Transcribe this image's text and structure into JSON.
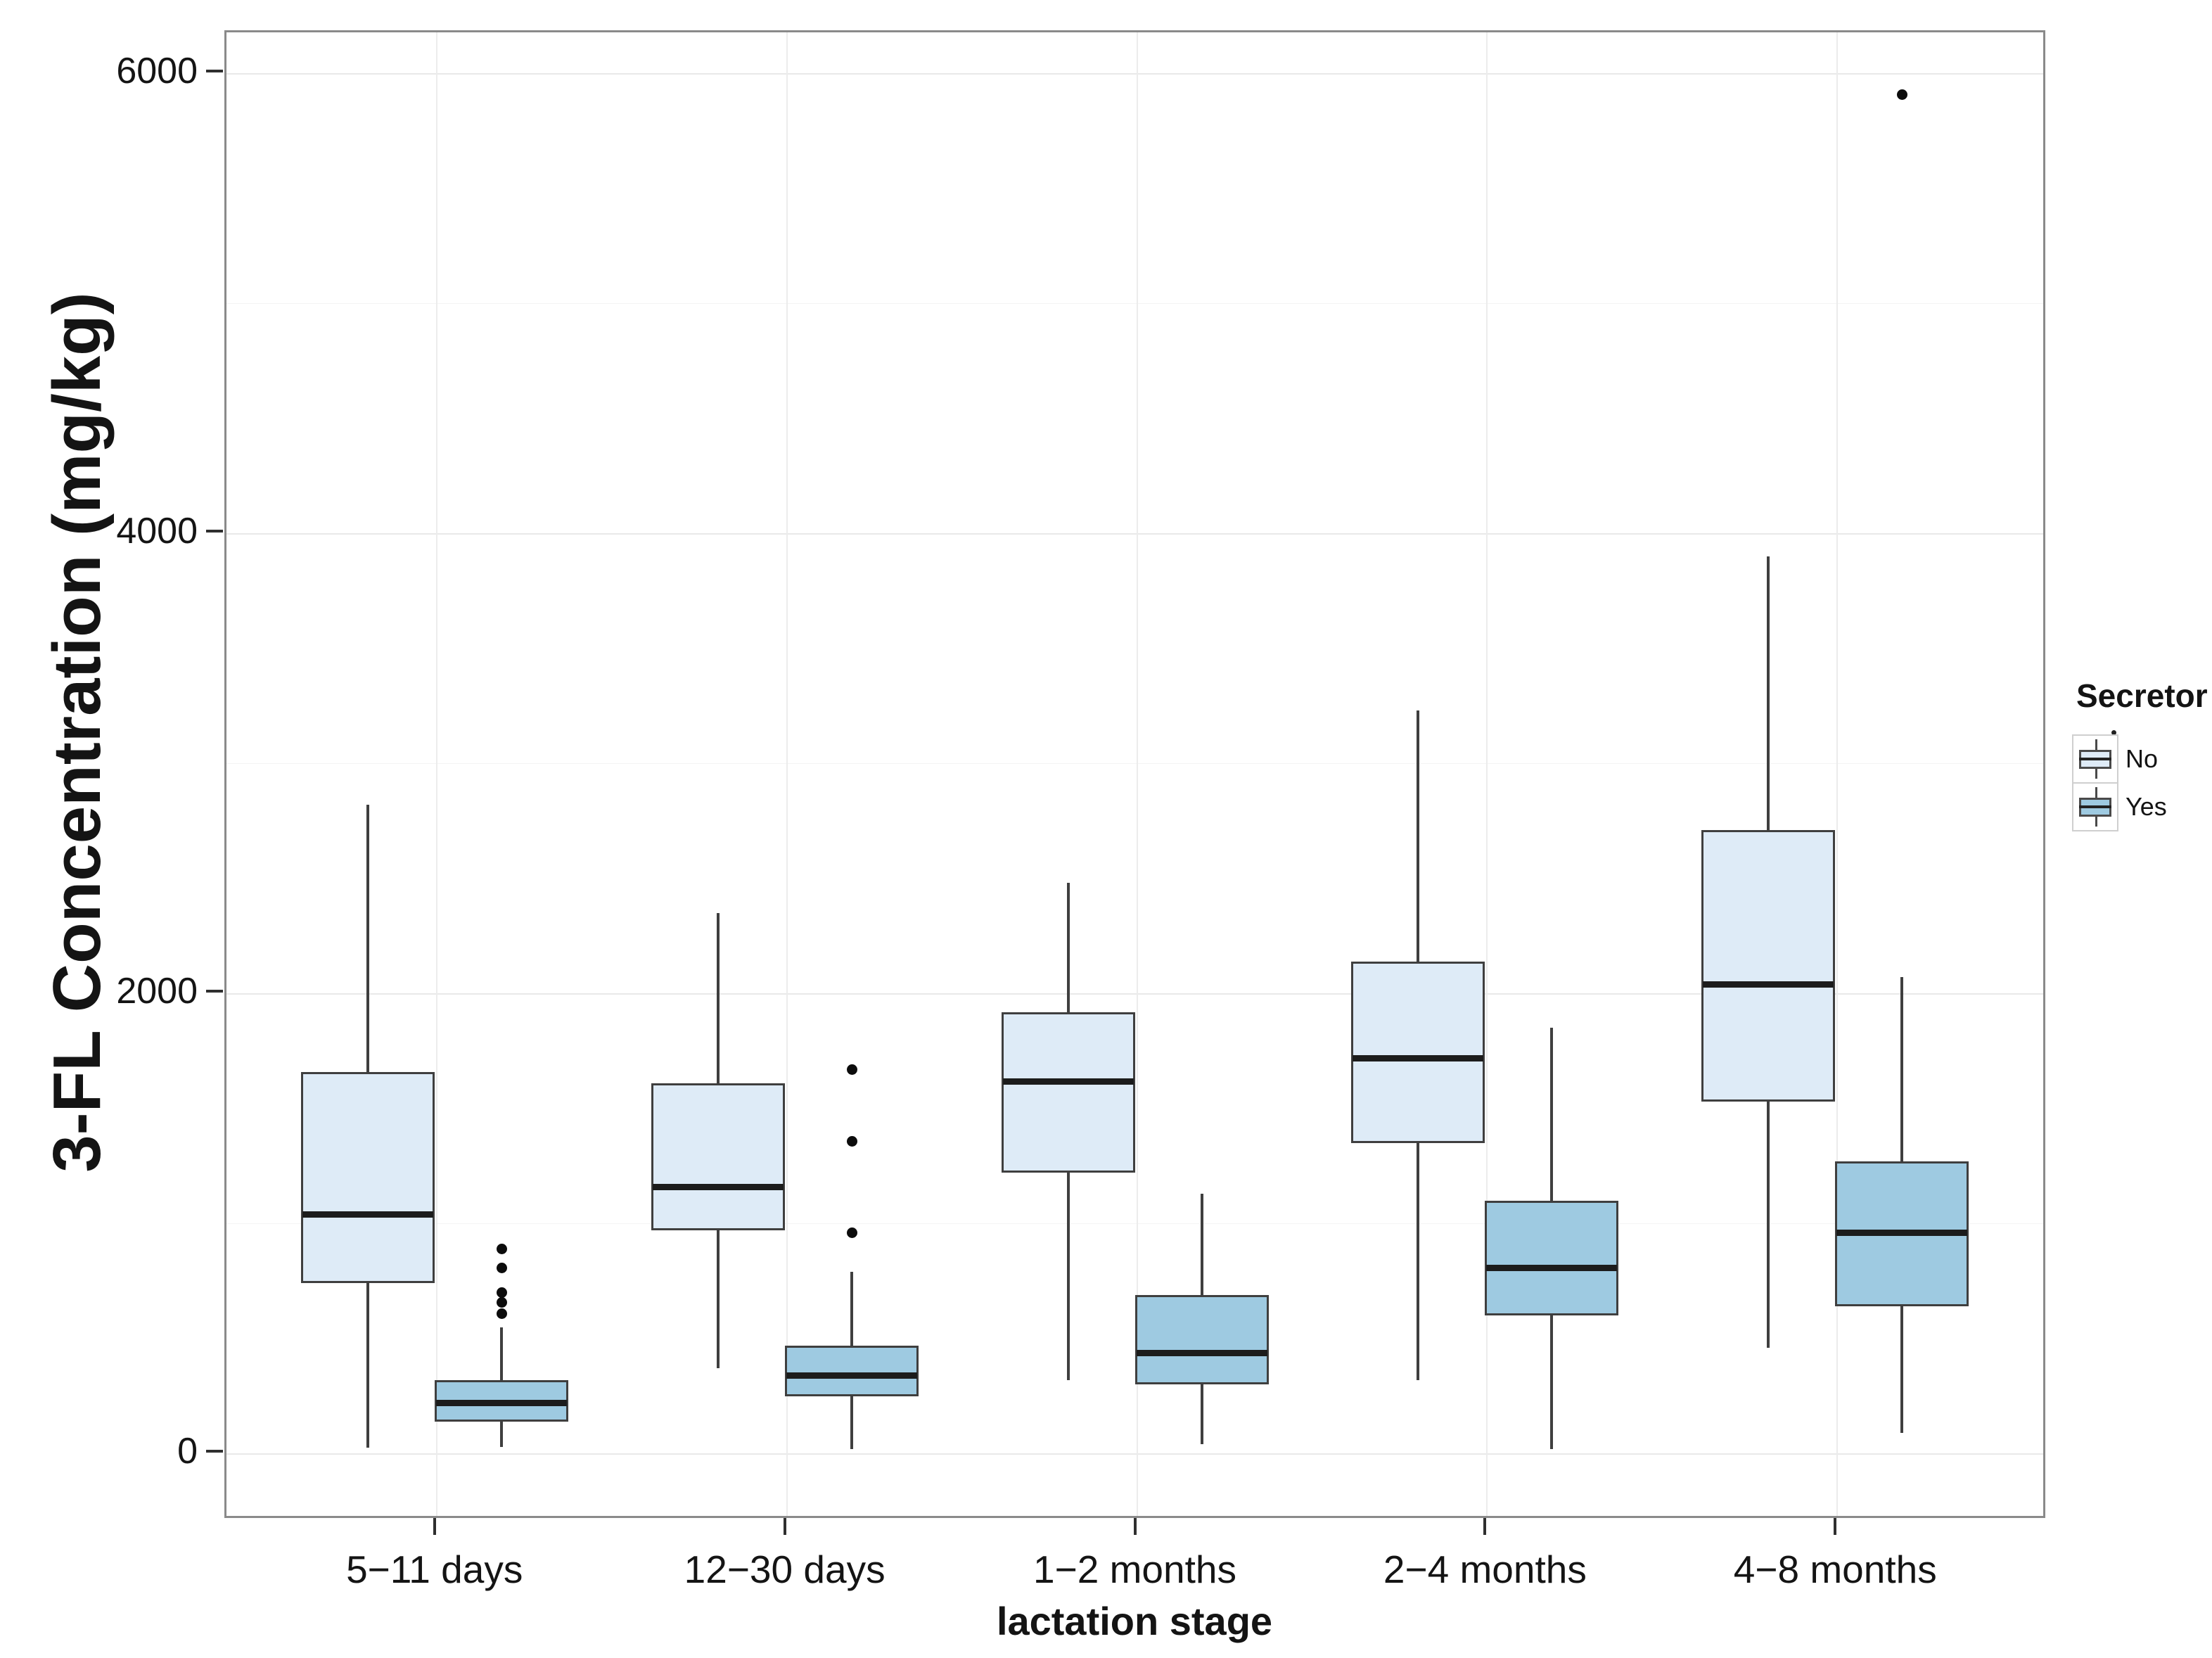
{
  "chart_data": {
    "type": "boxplot",
    "title": "",
    "xlabel": "lactation stage",
    "ylabel": "3-FL Concentration (mg/kg)",
    "categories": [
      "5−11 days",
      "12−30 days",
      "1−2 months",
      "2−4 months",
      "4−8 months"
    ],
    "yaxis": {
      "ticks": [
        {
          "v": 0,
          "label": "0"
        },
        {
          "v": 2000,
          "label": "2000"
        },
        {
          "v": 4000,
          "label": "4000"
        },
        {
          "v": 6000,
          "label": "6000"
        }
      ],
      "minor_ticks": [
        1000,
        3000,
        5000
      ],
      "range_shown": [
        0,
        6000
      ],
      "grid": true
    },
    "legend": {
      "title": "Secretor",
      "position": "right",
      "entries": [
        "No",
        "Yes"
      ]
    },
    "series": [
      {
        "name": "No",
        "fill": "#DEEBF7",
        "boxes": [
          {
            "category": "5−11 days",
            "whisker_low": 15,
            "q1": 730,
            "median": 1030,
            "q3": 1650,
            "whisker_high": 2810,
            "outliers": []
          },
          {
            "category": "12−30 days",
            "whisker_low": 360,
            "q1": 960,
            "median": 1150,
            "q3": 1600,
            "whisker_high": 2340,
            "outliers": []
          },
          {
            "category": "1−2 months",
            "whisker_low": 310,
            "q1": 1210,
            "median": 1610,
            "q3": 1910,
            "whisker_high": 2470,
            "outliers": []
          },
          {
            "category": "2−4 months",
            "whisker_low": 310,
            "q1": 1340,
            "median": 1710,
            "q3": 2130,
            "whisker_high": 3220,
            "outliers": []
          },
          {
            "category": "4−8 months",
            "whisker_low": 450,
            "q1": 1520,
            "median": 2030,
            "q3": 2700,
            "whisker_high": 3890,
            "outliers": []
          }
        ]
      },
      {
        "name": "Yes",
        "fill": "#9ECAE1",
        "boxes": [
          {
            "category": "5−11 days",
            "whisker_low": 20,
            "q1": 130,
            "median": 210,
            "q3": 310,
            "whisker_high": 540,
            "outliers": [
              600,
              650,
              690,
              800,
              880
            ]
          },
          {
            "category": "12−30 days",
            "whisker_low": 10,
            "q1": 240,
            "median": 330,
            "q3": 460,
            "whisker_high": 780,
            "outliers": [
              950,
              1350,
              1660
            ]
          },
          {
            "category": "1−2 months",
            "whisker_low": 30,
            "q1": 290,
            "median": 430,
            "q3": 680,
            "whisker_high": 1120,
            "outliers": []
          },
          {
            "category": "2−4 months",
            "whisker_low": 10,
            "q1": 590,
            "median": 800,
            "q3": 1090,
            "whisker_high": 1840,
            "outliers": []
          },
          {
            "category": "4−8 months",
            "whisker_low": 80,
            "q1": 630,
            "median": 950,
            "q3": 1260,
            "whisker_high": 2060,
            "outliers": [
              5900
            ]
          }
        ]
      }
    ],
    "colors": {
      "no_fill": "#DEEBF7",
      "yes_fill": "#9ECAE1",
      "box_border": "#3f3f3f",
      "median": "#1c1c1c",
      "panel_border": "#8a8a8a",
      "grid_major": "#e9e9e9",
      "grid_minor": "#f4f4f4",
      "text": "#141414"
    }
  }
}
